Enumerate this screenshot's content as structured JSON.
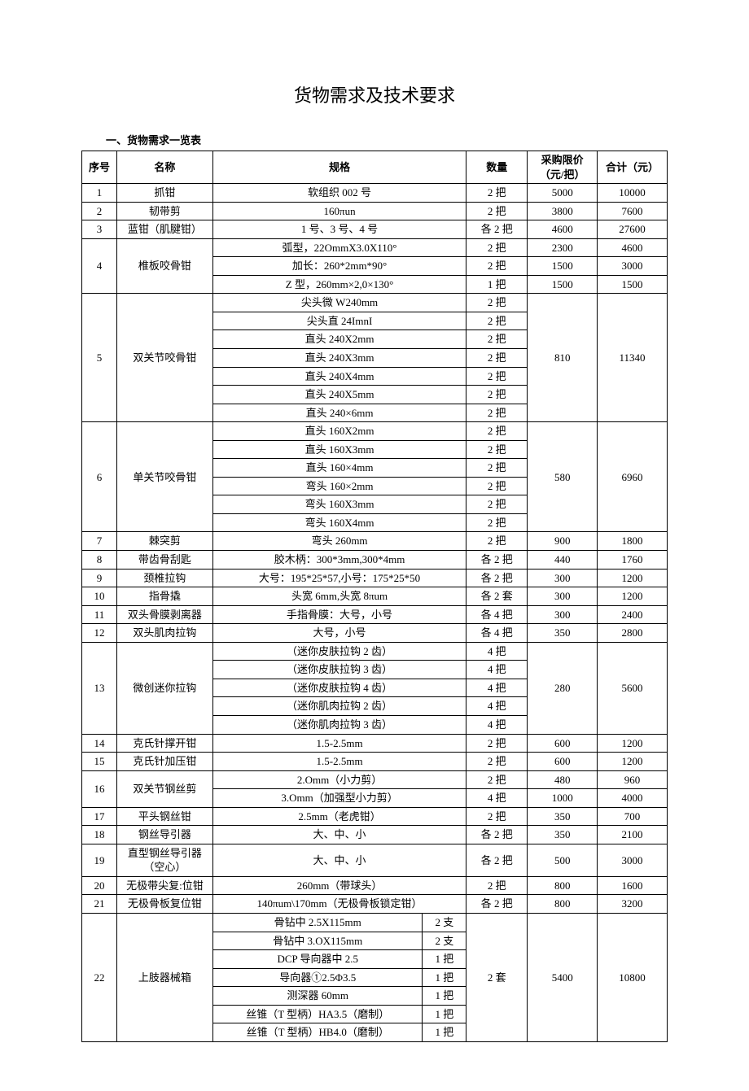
{
  "title": "货物需求及技术要求",
  "section": "一、货物需求一览表",
  "headers": {
    "seq": "序号",
    "name": "名称",
    "spec": "规格",
    "qty": "数量",
    "price": "采购限价（元/把）",
    "total": "合计（元）"
  },
  "r1": {
    "seq": "1",
    "name": "抓钳",
    "spec": "软组织 002 号",
    "qty": "2 把",
    "price": "5000",
    "total": "10000"
  },
  "r2": {
    "seq": "2",
    "name": "韧带剪",
    "spec": "160πun",
    "qty": "2 把",
    "price": "3800",
    "total": "7600"
  },
  "r3": {
    "seq": "3",
    "name": "蓝钳（肌腱钳）",
    "spec": "1 号、3 号、4 号",
    "qty": "各 2 把",
    "price": "4600",
    "total": "27600"
  },
  "r4": {
    "seq": "4",
    "name": "椎板咬骨钳",
    "s1": {
      "spec": "弧型，22OmmX3.0X110°",
      "qty": "2 把",
      "price": "2300",
      "total": "4600"
    },
    "s2": {
      "spec": "加长：260*2mm*90°",
      "qty": "2 把",
      "price": "1500",
      "total": "3000"
    },
    "s3": {
      "spec": "Z 型，260mm×2,0×130°",
      "qty": "1 把",
      "price": "1500",
      "total": "1500"
    }
  },
  "r5": {
    "seq": "5",
    "name": "双关节咬骨钳",
    "price": "810",
    "total": "11340",
    "s1": {
      "spec": "尖头微 W240mm",
      "qty": "2 把"
    },
    "s2": {
      "spec": "尖头直 24ImnI",
      "qty": "2 把"
    },
    "s3": {
      "spec": "直头 240X2mm",
      "qty": "2 把"
    },
    "s4": {
      "spec": "直头 240X3mm",
      "qty": "2 把"
    },
    "s5": {
      "spec": "直头 240X4mm",
      "qty": "2 把"
    },
    "s6": {
      "spec": "直头 240X5mm",
      "qty": "2 把"
    },
    "s7": {
      "spec": "直头 240×6mm",
      "qty": "2 把"
    }
  },
  "r6": {
    "seq": "6",
    "name": "单关节咬骨钳",
    "price": "580",
    "total": "6960",
    "s1": {
      "spec": "直头 160X2mm",
      "qty": "2 把"
    },
    "s2": {
      "spec": "直头 160X3mm",
      "qty": "2 把"
    },
    "s3": {
      "spec": "直头 160×4mm",
      "qty": "2 把"
    },
    "s4": {
      "spec": "弯头 160×2mm",
      "qty": "2 把"
    },
    "s5": {
      "spec": "弯头 160X3mm",
      "qty": "2 把"
    },
    "s6": {
      "spec": "弯头 160X4mm",
      "qty": "2 把"
    }
  },
  "r7": {
    "seq": "7",
    "name": "棘突剪",
    "spec": "弯头 260mm",
    "qty": "2 把",
    "price": "900",
    "total": "1800"
  },
  "r8": {
    "seq": "8",
    "name": "带齿骨刮匙",
    "spec": "胶木柄：300*3mm,300*4mm",
    "qty": "各 2 把",
    "price": "440",
    "total": "1760"
  },
  "r9": {
    "seq": "9",
    "name": "颈椎拉钩",
    "spec": "大号：195*25*57,小号：175*25*50",
    "qty": "各 2 把",
    "price": "300",
    "total": "1200"
  },
  "r10": {
    "seq": "10",
    "name": "指骨撬",
    "spec": "头宽 6mm,头宽 8πum",
    "qty": "各 2 套",
    "price": "300",
    "total": "1200"
  },
  "r11": {
    "seq": "11",
    "name": "双头骨膜剥离器",
    "spec": "手指骨膜：大号，小号",
    "qty": "各 4 把",
    "price": "300",
    "total": "2400"
  },
  "r12": {
    "seq": "12",
    "name": "双头肌肉拉钩",
    "spec": "大号，小号",
    "qty": "各 4 把",
    "price": "350",
    "total": "2800"
  },
  "r13": {
    "seq": "13",
    "name": "微创迷你拉钩",
    "price": "280",
    "total": "5600",
    "s1": {
      "spec": "（迷你皮肤拉钩 2 齿）",
      "qty": "4 把"
    },
    "s2": {
      "spec": "（迷你皮肤拉钩 3 齿）",
      "qty": "4 把"
    },
    "s3": {
      "spec": "（迷你皮肤拉钩 4 齿）",
      "qty": "4 把"
    },
    "s4": {
      "spec": "（迷你肌肉拉钩 2 齿）",
      "qty": "4 把"
    },
    "s5": {
      "spec": "（迷你肌肉拉钩 3 齿）",
      "qty": "4 把"
    }
  },
  "r14": {
    "seq": "14",
    "name": "克氏针撑开钳",
    "spec": "1.5-2.5mm",
    "qty": "2 把",
    "price": "600",
    "total": "1200"
  },
  "r15": {
    "seq": "15",
    "name": "克氏针加压钳",
    "spec": "1.5-2.5mm",
    "qty": "2 把",
    "price": "600",
    "total": "1200"
  },
  "r16": {
    "seq": "16",
    "name": "双关节钢丝剪",
    "s1": {
      "spec": "2.Omm（小力剪）",
      "qty": "2 把",
      "price": "480",
      "total": "960"
    },
    "s2": {
      "spec": "3.Omm（加强型小力剪）",
      "qty": "4 把",
      "price": "1000",
      "total": "4000"
    }
  },
  "r17": {
    "seq": "17",
    "name": "平头钢丝钳",
    "spec": "2.5mm（老虎钳）",
    "qty": "2 把",
    "price": "350",
    "total": "700"
  },
  "r18": {
    "seq": "18",
    "name": "钢丝导引器",
    "spec": "大、中、小",
    "qty": "各 2 把",
    "price": "350",
    "total": "2100"
  },
  "r19": {
    "seq": "19",
    "name": "直型钢丝导引器（空心）",
    "spec": "大、中、小",
    "qty": "各 2 把",
    "price": "500",
    "total": "3000"
  },
  "r20": {
    "seq": "20",
    "name": "无极带尖复:位钳",
    "spec": "260mm（带球头）",
    "qty": "2 把",
    "price": "800",
    "total": "1600"
  },
  "r21": {
    "seq": "21",
    "name": "无极骨板复位钳",
    "spec": "140πum\\170mm（无极骨板锁定钳）",
    "qty": "各 2 把",
    "price": "800",
    "total": "3200"
  },
  "r22": {
    "seq": "22",
    "name": "上肢器械箱",
    "qty": "2 套",
    "price": "5400",
    "total": "10800",
    "s1": {
      "spec": "骨钻中 2.5X115mm",
      "sub": "2 支"
    },
    "s2": {
      "spec": "骨钻中 3.OX115mm",
      "sub": "2 支"
    },
    "s3": {
      "spec": "DCP 导向器中 2.5",
      "sub": "1 把"
    },
    "s4": {
      "spec": "导向器①2.5Φ3.5",
      "sub": "1 把"
    },
    "s5": {
      "spec": "测深器 60mm",
      "sub": "1 把"
    },
    "s6": {
      "spec": "丝锥（T 型柄）HA3.5（磨制）",
      "sub": "1 把"
    },
    "s7": {
      "spec": "丝锥（T 型柄）HB4.0（磨制）",
      "sub": "1 把"
    }
  }
}
